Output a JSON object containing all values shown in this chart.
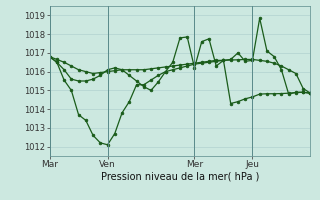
{
  "bg_color": "#cce8e0",
  "grid_color": "#aacccc",
  "line_color": "#1a5c1a",
  "marker_color": "#1a5c1a",
  "xlabel": "Pression niveau de la mer( hPa )",
  "ylim": [
    1011.5,
    1019.5
  ],
  "yticks": [
    1012,
    1013,
    1014,
    1015,
    1016,
    1017,
    1018,
    1019
  ],
  "xtick_labels": [
    "Mar",
    "Ven",
    "Mer",
    "Jeu"
  ],
  "xtick_positions": [
    0,
    48,
    120,
    168
  ],
  "total_hours": 216,
  "series1": {
    "x": [
      0,
      6,
      12,
      18,
      24,
      30,
      36,
      42,
      48,
      54,
      60,
      66,
      72,
      78,
      84,
      90,
      96,
      102,
      108,
      114,
      120,
      126,
      132,
      138,
      144,
      150,
      156,
      162,
      168,
      174,
      180,
      186,
      192,
      198,
      204,
      210,
      216
    ],
    "y": [
      1016.8,
      1016.65,
      1016.5,
      1016.3,
      1016.1,
      1016.0,
      1015.9,
      1015.95,
      1016.0,
      1016.05,
      1016.1,
      1016.1,
      1016.1,
      1016.1,
      1016.15,
      1016.2,
      1016.25,
      1016.3,
      1016.35,
      1016.4,
      1016.45,
      1016.5,
      1016.55,
      1016.6,
      1016.6,
      1016.62,
      1016.63,
      1016.65,
      1016.65,
      1016.6,
      1016.55,
      1016.45,
      1016.3,
      1016.1,
      1015.9,
      1015.1,
      1014.85
    ]
  },
  "series2": {
    "x": [
      0,
      6,
      12,
      18,
      24,
      30,
      36,
      42,
      48,
      54,
      60,
      66,
      72,
      78,
      84,
      90,
      96,
      102,
      108,
      114,
      120,
      126,
      132,
      138,
      144,
      150,
      156,
      162,
      168,
      174,
      180,
      186,
      192,
      198,
      204,
      210,
      216
    ],
    "y": [
      1016.8,
      1016.5,
      1016.1,
      1015.6,
      1015.5,
      1015.5,
      1015.6,
      1015.8,
      1016.1,
      1016.2,
      1016.1,
      1015.8,
      1015.5,
      1015.2,
      1015.0,
      1015.45,
      1016.0,
      1016.5,
      1017.8,
      1017.85,
      1016.2,
      1017.6,
      1017.75,
      1016.3,
      1016.6,
      1016.65,
      1017.0,
      1016.55,
      1016.6,
      1018.85,
      1017.1,
      1016.8,
      1016.1,
      1014.8,
      1014.9,
      1014.9,
      1014.85
    ]
  },
  "series3": {
    "x": [
      0,
      6,
      12,
      18,
      24,
      30,
      36,
      42,
      48,
      54,
      60,
      66,
      72,
      78,
      84,
      90,
      96,
      102,
      108,
      114,
      120,
      126,
      132,
      138,
      144,
      150,
      156,
      162,
      168,
      174,
      180,
      186,
      192,
      198,
      204,
      210,
      216
    ],
    "y": [
      1016.8,
      1016.5,
      1015.55,
      1015.0,
      1013.7,
      1013.4,
      1012.6,
      1012.2,
      1012.1,
      1012.7,
      1013.8,
      1014.4,
      1015.3,
      1015.3,
      1015.55,
      1015.8,
      1016.0,
      1016.1,
      1016.2,
      1016.3,
      1016.4,
      1016.45,
      1016.5,
      1016.55,
      1016.6,
      1014.3,
      1014.4,
      1014.55,
      1014.65,
      1014.8,
      1014.82,
      1014.82,
      1014.83,
      1014.85,
      1014.88,
      1014.9,
      1014.85
    ]
  }
}
